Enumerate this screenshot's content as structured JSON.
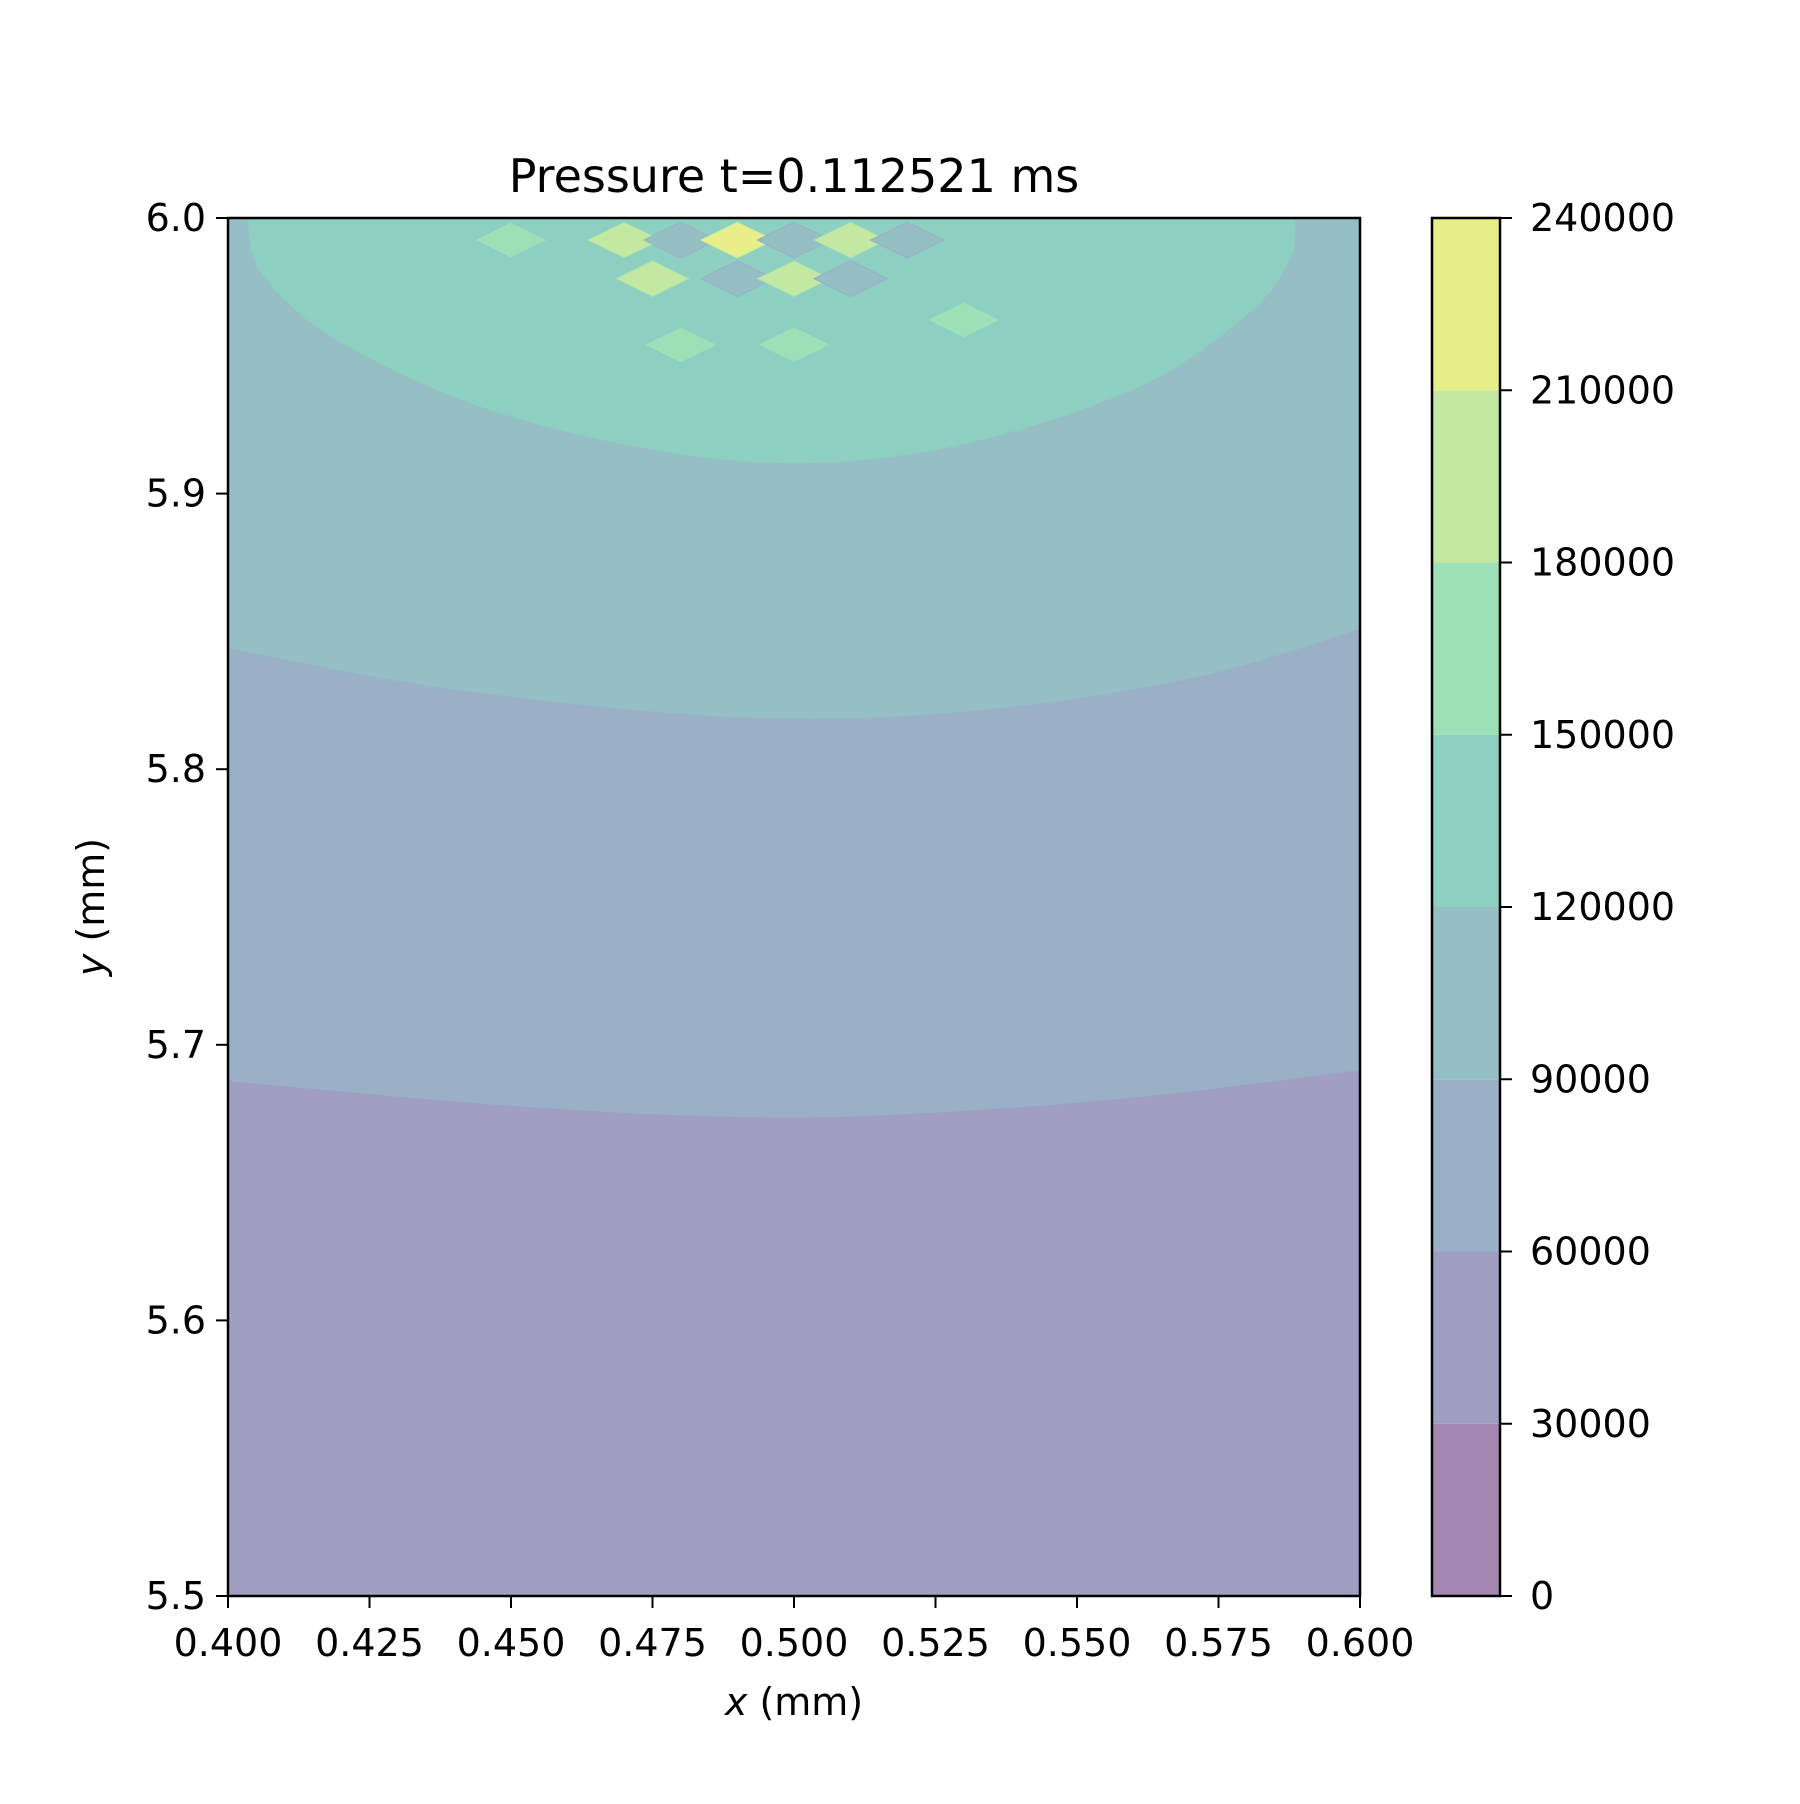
{
  "chart_data": {
    "type": "contourf",
    "title": "Pressure t=0.112521 ms",
    "xlabel_var": "x",
    "xlabel_unit": " (mm)",
    "ylabel_var": "y",
    "ylabel_unit": " (mm)",
    "xlim": [
      0.4,
      0.6
    ],
    "ylim": [
      5.5,
      6.0
    ],
    "x_ticks": [
      "0.400",
      "0.425",
      "0.450",
      "0.475",
      "0.500",
      "0.525",
      "0.550",
      "0.575",
      "0.600"
    ],
    "y_ticks": [
      "5.5",
      "5.6",
      "5.7",
      "5.8",
      "5.9",
      "6.0"
    ],
    "colorbar": {
      "levels": [
        0,
        30000,
        60000,
        90000,
        120000,
        150000,
        180000,
        210000,
        240000
      ],
      "tick_labels": [
        "0",
        "30000",
        "60000",
        "90000",
        "120000",
        "150000",
        "180000",
        "210000",
        "240000"
      ],
      "colors": [
        "#a488b2",
        "#a09fc2",
        "#99b0c6",
        "#95bec5",
        "#8dcfc1",
        "#9ddfb6",
        "#c2e8a2",
        "#e9ef88"
      ],
      "colormap": "viridis",
      "alpha": 0.5
    },
    "contour_boundaries": [
      {
        "level": 60000,
        "points": [
          [
            0.4,
            5.687
          ],
          [
            0.45,
            5.678
          ],
          [
            0.49,
            5.674
          ],
          [
            0.52,
            5.675
          ],
          [
            0.56,
            5.681
          ],
          [
            0.6,
            5.691
          ]
        ]
      },
      {
        "level": 90000,
        "points": [
          [
            0.4,
            5.844
          ],
          [
            0.44,
            5.829
          ],
          [
            0.49,
            5.819
          ],
          [
            0.53,
            5.821
          ],
          [
            0.57,
            5.833
          ],
          [
            0.6,
            5.851
          ]
        ]
      },
      {
        "level": 120000,
        "points": [
          [
            0.4035,
            6.0
          ],
          [
            0.406,
            5.98
          ],
          [
            0.42,
            5.955
          ],
          [
            0.45,
            5.928
          ],
          [
            0.49,
            5.912
          ],
          [
            0.525,
            5.916
          ],
          [
            0.56,
            5.938
          ],
          [
            0.58,
            5.965
          ],
          [
            0.5875,
            5.985
          ],
          [
            0.5885,
            6.0
          ]
        ]
      }
    ],
    "hotspots": [
      {
        "x": 0.45,
        "y": 5.992,
        "band": 5
      },
      {
        "x": 0.47,
        "y": 5.992,
        "band": 6
      },
      {
        "x": 0.48,
        "y": 5.992,
        "band": 3
      },
      {
        "x": 0.49,
        "y": 5.992,
        "band": 7
      },
      {
        "x": 0.5,
        "y": 5.992,
        "band": 3
      },
      {
        "x": 0.51,
        "y": 5.992,
        "band": 6
      },
      {
        "x": 0.52,
        "y": 5.992,
        "band": 3
      },
      {
        "x": 0.475,
        "y": 5.978,
        "band": 6
      },
      {
        "x": 0.49,
        "y": 5.978,
        "band": 3
      },
      {
        "x": 0.5,
        "y": 5.978,
        "band": 6
      },
      {
        "x": 0.51,
        "y": 5.978,
        "band": 3
      },
      {
        "x": 0.53,
        "y": 5.963,
        "band": 5
      },
      {
        "x": 0.48,
        "y": 5.954,
        "band": 5
      },
      {
        "x": 0.5,
        "y": 5.954,
        "band": 5
      }
    ]
  }
}
